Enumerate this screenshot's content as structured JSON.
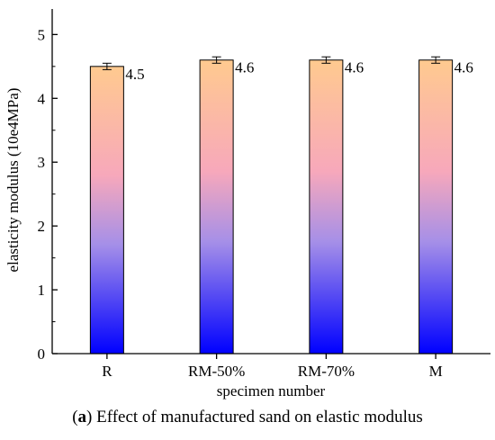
{
  "chart_data": {
    "type": "bar",
    "categories": [
      "R",
      "RM-50%",
      "RM-70%",
      "M"
    ],
    "values": [
      4.5,
      4.6,
      4.6,
      4.6
    ],
    "errors": [
      0.05,
      0.05,
      0.05,
      0.05
    ],
    "data_labels": [
      "4.5",
      "4.6",
      "4.6",
      "4.6"
    ],
    "xlabel": "specimen number",
    "ylabel": "elasticity modulus (10e4MPa)",
    "ylim": [
      0,
      5.4
    ],
    "yticks": [
      0,
      1,
      2,
      3,
      4,
      5
    ],
    "grid": false,
    "legend": "none"
  },
  "caption": {
    "label": "a",
    "text": " Effect of manufactured sand on elastic modulus"
  },
  "colors": {
    "bar_top": "#ffca8f",
    "bar_mid": "#f7a8bb",
    "bar_lavender": "#a58fe8",
    "bar_bottom": "#0000ff"
  }
}
